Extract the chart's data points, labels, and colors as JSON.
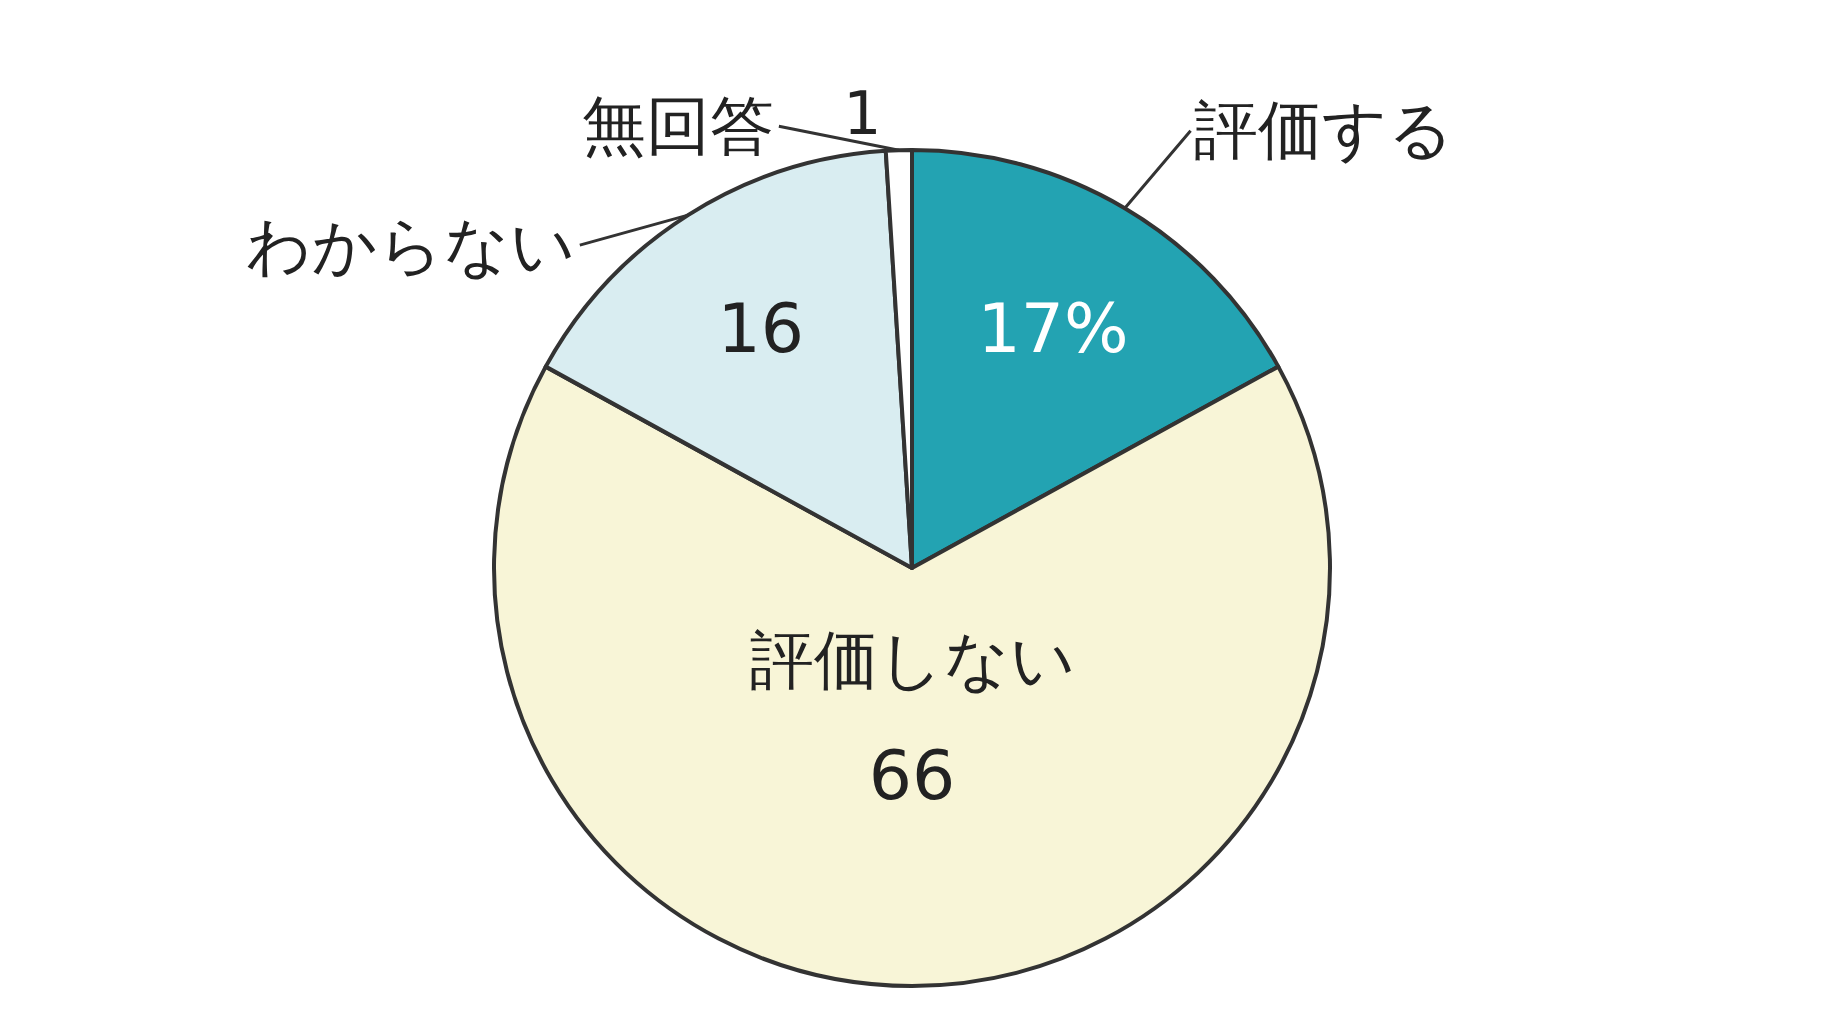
{
  "chart_data": {
    "type": "pie",
    "categories": [
      "評価する",
      "評価しない",
      "わからない",
      "無回答"
    ],
    "values": [
      17,
      66,
      16,
      1
    ],
    "value_labels": [
      "17%",
      "66",
      "16",
      "1"
    ],
    "colors": [
      "#23a3b2",
      "#f8f5d7",
      "#d9edf1",
      "#ffffff"
    ],
    "legend": false
  }
}
